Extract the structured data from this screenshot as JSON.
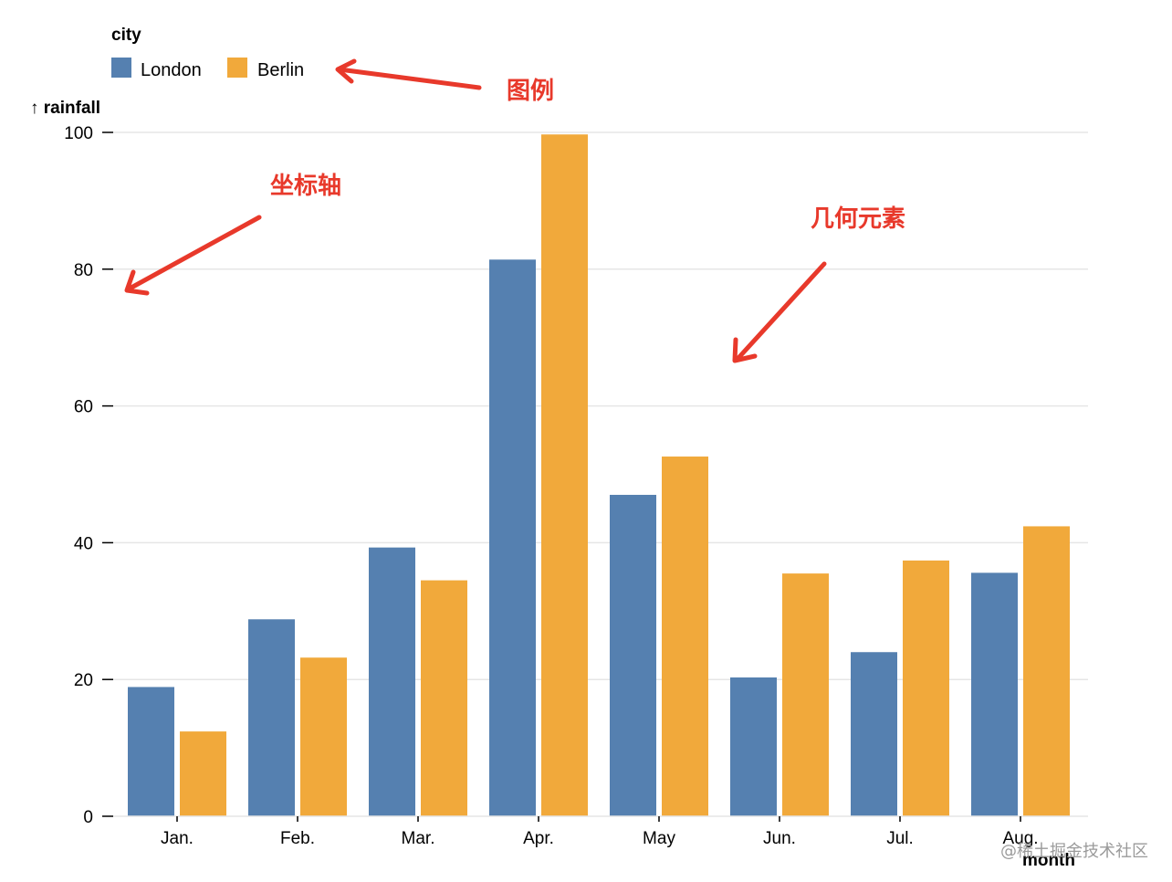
{
  "chart_data": {
    "type": "bar",
    "categories": [
      "Jan.",
      "Feb.",
      "Mar.",
      "Apr.",
      "May",
      "Jun.",
      "Jul.",
      "Aug."
    ],
    "series": [
      {
        "name": "London",
        "values": [
          18.9,
          28.8,
          39.3,
          81.4,
          47,
          20.3,
          24,
          35.6
        ]
      },
      {
        "name": "Berlin",
        "values": [
          12.4,
          23.2,
          34.5,
          99.7,
          52.6,
          35.5,
          37.4,
          42.4
        ]
      }
    ],
    "xlabel": "month",
    "ylabel": "↑ rainfall",
    "ylim": [
      0,
      100
    ],
    "yticks": [
      0,
      20,
      40,
      60,
      80,
      100
    ],
    "grid": true,
    "legend": {
      "title": "city",
      "position": "top-left"
    },
    "annotations": {
      "legend": "图例",
      "axis": "坐标轴",
      "geometry": "几何元素"
    },
    "watermark": "@稀土掘金技术社区"
  },
  "colors": {
    "London": "#5580b0",
    "Berlin": "#f1a93b",
    "grid": "#e6e6e6",
    "axis": "#000000",
    "annotation": "#e8392b"
  }
}
